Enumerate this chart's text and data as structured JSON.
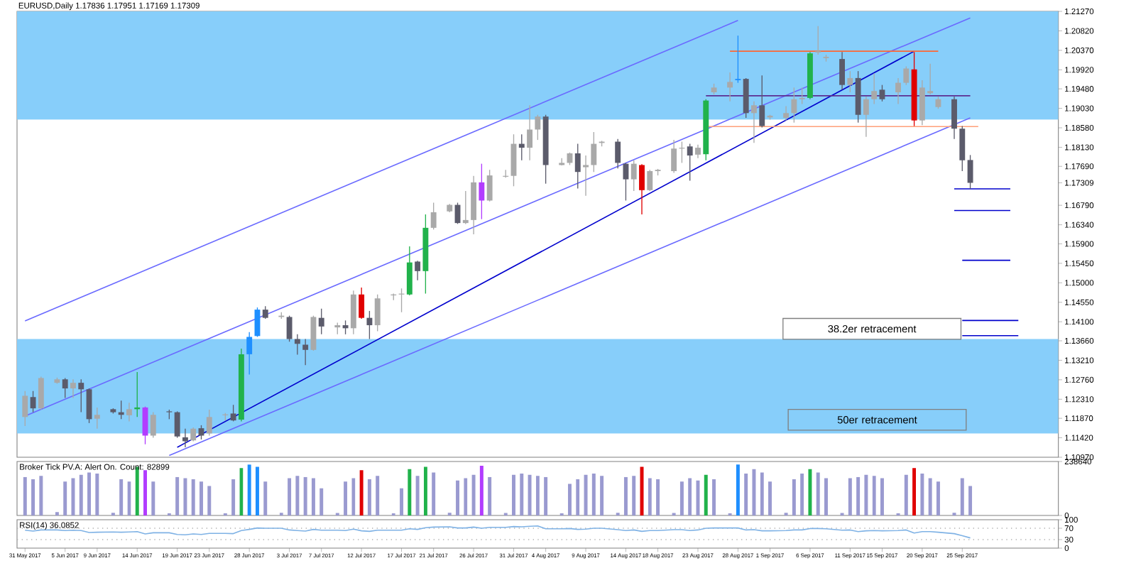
{
  "chart_data": [
    {
      "type": "candlestick",
      "title": "EURUSD,Daily 1.17836 1.17951 1.17169 1.17309",
      "x": [
        "2017-05-31",
        "2017-06-01",
        "2017-06-02",
        "2017-06-04",
        "2017-06-05",
        "2017-06-06",
        "2017-06-07",
        "2017-06-08",
        "2017-06-09",
        "2017-06-11",
        "2017-06-12",
        "2017-06-13",
        "2017-06-14",
        "2017-06-15",
        "2017-06-16",
        "2017-06-18",
        "2017-06-19",
        "2017-06-20",
        "2017-06-21",
        "2017-06-22",
        "2017-06-23",
        "2017-06-25",
        "2017-06-26",
        "2017-06-27",
        "2017-06-28",
        "2017-06-29",
        "2017-06-30",
        "2017-07-02",
        "2017-07-03",
        "2017-07-04",
        "2017-07-05",
        "2017-07-06",
        "2017-07-07",
        "2017-07-09",
        "2017-07-10",
        "2017-07-11",
        "2017-07-12",
        "2017-07-13",
        "2017-07-14",
        "2017-07-16",
        "2017-07-17",
        "2017-07-18",
        "2017-07-19",
        "2017-07-20",
        "2017-07-21",
        "2017-07-23",
        "2017-07-24",
        "2017-07-25",
        "2017-07-26",
        "2017-07-27",
        "2017-07-28",
        "2017-07-30",
        "2017-07-31",
        "2017-08-01",
        "2017-08-02",
        "2017-08-03",
        "2017-08-04",
        "2017-08-06",
        "2017-08-07",
        "2017-08-08",
        "2017-08-09",
        "2017-08-10",
        "2017-08-11",
        "2017-08-13",
        "2017-08-14",
        "2017-08-15",
        "2017-08-16",
        "2017-08-17",
        "2017-08-18",
        "2017-08-20",
        "2017-08-21",
        "2017-08-22",
        "2017-08-23",
        "2017-08-24",
        "2017-08-25",
        "2017-08-27",
        "2017-08-28",
        "2017-08-29",
        "2017-08-30",
        "2017-08-31",
        "2017-09-01",
        "2017-09-03",
        "2017-09-04",
        "2017-09-05",
        "2017-09-06",
        "2017-09-07",
        "2017-09-08",
        "2017-09-10",
        "2017-09-11",
        "2017-09-12",
        "2017-09-13",
        "2017-09-14",
        "2017-09-15",
        "2017-09-17",
        "2017-09-18",
        "2017-09-19",
        "2017-09-20",
        "2017-09-21",
        "2017-09-22",
        "2017-09-24",
        "2017-09-25",
        "2017-09-26"
      ],
      "ohlc": [
        [
          1.119,
          1.125,
          1.1169,
          1.1239
        ],
        [
          1.1236,
          1.125,
          1.1201,
          1.121
        ],
        [
          1.121,
          1.1283,
          1.1207,
          1.128
        ],
        [
          1.1269,
          1.1281,
          1.1267,
          1.1277
        ],
        [
          1.1277,
          1.128,
          1.1234,
          1.1256
        ],
        [
          1.1256,
          1.1277,
          1.1234,
          1.1269
        ],
        [
          1.1269,
          1.1277,
          1.1201,
          1.1254
        ],
        [
          1.1254,
          1.1256,
          1.1176,
          1.1185
        ],
        [
          1.1186,
          1.1212,
          1.1163,
          1.1195
        ],
        [
          1.1208,
          1.121,
          1.1198,
          1.1201
        ],
        [
          1.1201,
          1.1228,
          1.1185,
          1.1195
        ],
        [
          1.1194,
          1.1223,
          1.118,
          1.1208
        ],
        [
          1.1208,
          1.1294,
          1.119,
          1.1212
        ],
        [
          1.1212,
          1.1214,
          1.1127,
          1.1147
        ],
        [
          1.1147,
          1.1201,
          1.1142,
          1.1195
        ],
        [
          1.1203,
          1.1207,
          1.1185,
          1.1201
        ],
        [
          1.1201,
          1.1203,
          1.1142,
          1.1145
        ],
        [
          1.1143,
          1.1163,
          1.112,
          1.1134
        ],
        [
          1.1136,
          1.1166,
          1.1134,
          1.1163
        ],
        [
          1.1164,
          1.1171,
          1.1138,
          1.1147
        ],
        [
          1.1152,
          1.1207,
          1.1147,
          1.119
        ],
        [
          1.1194,
          1.1199,
          1.1182,
          1.1196
        ],
        [
          1.1198,
          1.1218,
          1.118,
          1.1182
        ],
        [
          1.1184,
          1.1348,
          1.118,
          1.1335
        ],
        [
          1.1335,
          1.1386,
          1.1288,
          1.1375
        ],
        [
          1.1377,
          1.1443,
          1.1375,
          1.1438
        ],
        [
          1.1438,
          1.1446,
          1.1417,
          1.1419
        ],
        [
          1.1421,
          1.1432,
          1.1417,
          1.1424
        ],
        [
          1.1421,
          1.1424,
          1.1364,
          1.137
        ],
        [
          1.137,
          1.1381,
          1.1334,
          1.1359
        ],
        [
          1.1357,
          1.137,
          1.131,
          1.1345
        ],
        [
          1.1345,
          1.1424,
          1.1343,
          1.1421
        ],
        [
          1.1419,
          1.144,
          1.1381,
          1.1399
        ],
        [
          1.1397,
          1.1408,
          1.1381,
          1.1402
        ],
        [
          1.1402,
          1.1413,
          1.1381,
          1.1395
        ],
        [
          1.1395,
          1.1482,
          1.1381,
          1.1473
        ],
        [
          1.1473,
          1.1489,
          1.1417,
          1.1419
        ],
        [
          1.1419,
          1.1435,
          1.137,
          1.1402
        ],
        [
          1.1402,
          1.1473,
          1.1388,
          1.1464
        ],
        [
          1.1471,
          1.1475,
          1.146,
          1.1473
        ],
        [
          1.1473,
          1.1487,
          1.1432,
          1.1475
        ],
        [
          1.1473,
          1.1584,
          1.1471,
          1.1547
        ],
        [
          1.1549,
          1.1551,
          1.1506,
          1.1527
        ],
        [
          1.1527,
          1.1658,
          1.1475,
          1.1627
        ],
        [
          1.1627,
          1.1685,
          1.1623,
          1.1663
        ],
        [
          1.1665,
          1.1682,
          1.1663,
          1.168
        ],
        [
          1.168,
          1.1685,
          1.1636,
          1.1638
        ],
        [
          1.1638,
          1.1712,
          1.1636,
          1.1645
        ],
        [
          1.1645,
          1.1747,
          1.1612,
          1.1732
        ],
        [
          1.1732,
          1.1775,
          1.1647,
          1.169
        ],
        [
          1.169,
          1.1761,
          1.1688,
          1.1748
        ],
        [
          1.1745,
          1.1761,
          1.1743,
          1.1747
        ],
        [
          1.1747,
          1.1843,
          1.1723,
          1.1821
        ],
        [
          1.1821,
          1.1843,
          1.1783,
          1.1812
        ],
        [
          1.1812,
          1.191,
          1.1783,
          1.1854
        ],
        [
          1.1854,
          1.1888,
          1.183,
          1.1884
        ],
        [
          1.1884,
          1.1888,
          1.1729,
          1.1772
        ],
        [
          1.1772,
          1.1788,
          1.1771,
          1.1777
        ],
        [
          1.1777,
          1.1801,
          1.1772,
          1.1799
        ],
        [
          1.1799,
          1.1821,
          1.1718,
          1.1756
        ],
        [
          1.1767,
          1.1794,
          1.1701,
          1.1772
        ],
        [
          1.1772,
          1.1848,
          1.1756,
          1.1821
        ],
        [
          1.1823,
          1.1828,
          1.1815,
          1.1826
        ],
        [
          1.1826,
          1.1832,
          1.1764,
          1.1777
        ],
        [
          1.1775,
          1.1777,
          1.169,
          1.1739
        ],
        [
          1.1739,
          1.1783,
          1.1712,
          1.1775
        ],
        [
          1.1772,
          1.1774,
          1.1658,
          1.1714
        ],
        [
          1.1714,
          1.1761,
          1.1712,
          1.1758
        ],
        [
          1.1758,
          1.1763,
          1.1748,
          1.1761
        ],
        [
          1.1758,
          1.183,
          1.1754,
          1.181
        ],
        [
          1.181,
          1.1826,
          1.1777,
          1.1812
        ],
        [
          1.1815,
          1.1821,
          1.1736,
          1.1794
        ],
        [
          1.1796,
          1.1819,
          1.1788,
          1.1812
        ],
        [
          1.1797,
          1.1924,
          1.1783,
          1.1921
        ],
        [
          1.194,
          1.196,
          1.1935,
          1.1951
        ],
        [
          1.1951,
          1.1986,
          1.1919,
          1.1964
        ],
        [
          1.1968,
          1.2071,
          1.1962,
          1.1971
        ],
        [
          1.1971,
          1.1973,
          1.1881,
          1.1892
        ],
        [
          1.1892,
          1.1919,
          1.1823,
          1.191
        ],
        [
          1.191,
          1.1979,
          1.1859,
          1.1862
        ],
        [
          1.1882,
          1.1888,
          1.1877,
          1.1886
        ],
        [
          1.1881,
          1.1908,
          1.1875,
          1.1892
        ],
        [
          1.1892,
          1.1951,
          1.187,
          1.1924
        ],
        [
          1.1924,
          1.1951,
          1.1913,
          1.1927
        ],
        [
          1.1927,
          1.2033,
          1.1924,
          1.203
        ],
        [
          1.2032,
          1.2093,
          1.2027,
          1.2035
        ],
        [
          1.2019,
          1.2027,
          1.2011,
          1.2022
        ],
        [
          1.2017,
          1.2033,
          1.1946,
          1.1957
        ],
        [
          1.1957,
          1.1989,
          1.194,
          1.1973
        ],
        [
          1.1973,
          1.1989,
          1.187,
          1.1888
        ],
        [
          1.1888,
          1.193,
          1.1837,
          1.1924
        ],
        [
          1.1924,
          1.1984,
          1.1913,
          1.1943
        ],
        [
          1.1946,
          1.1957,
          1.1919,
          1.1924
        ],
        [
          1.194,
          1.1973,
          1.1913,
          1.1962
        ],
        [
          1.1962,
          1.2,
          1.1957,
          1.1995
        ],
        [
          1.1993,
          1.2033,
          1.1862,
          1.1875
        ],
        [
          1.1875,
          1.1968,
          1.1864,
          1.1951
        ],
        [
          1.1938,
          1.2006,
          1.1935,
          1.1943
        ],
        [
          1.1906,
          1.193,
          1.1902,
          1.1924
        ],
        [
          1.1924,
          1.193,
          1.1832,
          1.1856
        ],
        [
          1.1856,
          1.1862,
          1.1758,
          1.1783
        ],
        [
          1.17836,
          1.17951,
          1.17169,
          1.17309
        ]
      ],
      "colors": [
        "#a9a9a9",
        "#5b5b6b",
        "#a9a9a9",
        "#a9a9a9",
        "#5b5b6b",
        "#a9a9a9",
        "#5b5b6b",
        "#5b5b6b",
        "#a9a9a9",
        "#5b5b6b",
        "#5b5b6b",
        "#a9a9a9",
        "#21b24b",
        "#b23cff",
        "#a9a9a9",
        "#5b5b6b",
        "#5b5b6b",
        "#5b5b6b",
        "#a9a9a9",
        "#5b5b6b",
        "#a9a9a9",
        "#a9a9a9",
        "#5b5b6b",
        "#21b24b",
        "#1e8fff",
        "#1e8fff",
        "#5b5b6b",
        "#a9a9a9",
        "#5b5b6b",
        "#5b5b6b",
        "#5b5b6b",
        "#a9a9a9",
        "#5b5b6b",
        "#a9a9a9",
        "#5b5b6b",
        "#a9a9a9",
        "#e00000",
        "#5b5b6b",
        "#a9a9a9",
        "#a9a9a9",
        "#a9a9a9",
        "#21b24b",
        "#5b5b6b",
        "#21b24b",
        "#a9a9a9",
        "#a9a9a9",
        "#5b5b6b",
        "#a9a9a9",
        "#a9a9a9",
        "#b23cff",
        "#a9a9a9",
        "#a9a9a9",
        "#a9a9a9",
        "#5b5b6b",
        "#a9a9a9",
        "#a9a9a9",
        "#5b5b6b",
        "#a9a9a9",
        "#a9a9a9",
        "#5b5b6b",
        "#a9a9a9",
        "#a9a9a9",
        "#a9a9a9",
        "#5b5b6b",
        "#5b5b6b",
        "#a9a9a9",
        "#e00000",
        "#a9a9a9",
        "#a9a9a9",
        "#a9a9a9",
        "#a9a9a9",
        "#5b5b6b",
        "#a9a9a9",
        "#21b24b",
        "#a9a9a9",
        "#a9a9a9",
        "#1e8fff",
        "#5b5b6b",
        "#a9a9a9",
        "#5b5b6b",
        "#a9a9a9",
        "#a9a9a9",
        "#a9a9a9",
        "#a9a9a9",
        "#21b24b",
        "#a9a9a9",
        "#a9a9a9",
        "#5b5b6b",
        "#a9a9a9",
        "#5b5b6b",
        "#a9a9a9",
        "#a9a9a9",
        "#5b5b6b",
        "#a9a9a9",
        "#a9a9a9",
        "#e00000",
        "#a9a9a9",
        "#a9a9a9",
        "#a9a9a9",
        "#5b5b6b",
        "#5b5b6b",
        "#5b5b6b"
      ],
      "series": [
        {
          "type": "line",
          "x": [
            "2017-06-19",
            "2017-09-19"
          ],
          "values": [
            1.112,
            1.2035
          ],
          "color": "#0000cd"
        },
        {
          "type": "line",
          "x": [
            "2017-05-31",
            "2017-08-28"
          ],
          "values": [
            1.1412,
            1.2106
          ],
          "color": "#6a6aff"
        },
        {
          "type": "line",
          "x": [
            "2017-05-31",
            "2017-09-26"
          ],
          "values": [
            1.1192,
            1.2112
          ],
          "color": "#6a6aff"
        },
        {
          "type": "line",
          "x": [
            "2017-06-18",
            "2017-09-26"
          ],
          "values": [
            1.1101,
            1.1881
          ],
          "color": "#6a6aff"
        },
        {
          "type": "line",
          "x": [
            "2017-08-27",
            "2017-09-22"
          ],
          "values": [
            1.2035,
            1.2035
          ],
          "color": "#ff6633"
        },
        {
          "type": "line",
          "x": [
            "2017-08-24",
            "2017-09-27"
          ],
          "values": [
            1.1861,
            1.1861
          ],
          "color": "#ffa07a"
        },
        {
          "type": "line",
          "x": [
            "2017-08-24",
            "2017-09-26"
          ],
          "values": [
            1.1932,
            1.1932
          ],
          "color": "#5c2d91"
        },
        {
          "type": "line",
          "x": [
            "2017-09-24",
            "2017-10-01"
          ],
          "values": [
            1.1717,
            1.1717
          ],
          "color": "#0000cc"
        },
        {
          "type": "line",
          "x": [
            "2017-09-24",
            "2017-10-01"
          ],
          "values": [
            1.1667,
            1.1667
          ],
          "color": "#0000cc"
        },
        {
          "type": "line",
          "x": [
            "2017-09-25",
            "2017-10-01"
          ],
          "values": [
            1.1552,
            1.1552
          ],
          "color": "#0000cc"
        },
        {
          "type": "line",
          "x": [
            "2017-09-25",
            "2017-10-02"
          ],
          "values": [
            1.1413,
            1.1413
          ],
          "color": "#0000cc"
        },
        {
          "type": "line",
          "x": [
            "2017-09-25",
            "2017-10-02"
          ],
          "values": [
            1.1378,
            1.1378
          ],
          "color": "#0000cc"
        }
      ],
      "bands": [
        {
          "axis": "y",
          "from": 1.1877,
          "to": 1.2127,
          "color": "#87cefa"
        },
        {
          "axis": "y",
          "from": 1.1152,
          "to": 1.137,
          "color": "#87cefa"
        }
      ],
      "annotations": [
        "38.2er retracement",
        "50er retracement"
      ],
      "xlim": [
        "2017-05-30",
        "2017-10-07"
      ],
      "ylim": [
        1.1097,
        1.2127
      ],
      "yticks": [
        {
          "value": 1.2127,
          "label": "1.21270"
        },
        {
          "value": 1.2082,
          "label": "1.20820"
        },
        {
          "value": 1.2037,
          "label": "1.20370"
        },
        {
          "value": 1.1992,
          "label": "1.19920"
        },
        {
          "value": 1.1948,
          "label": "1.19480"
        },
        {
          "value": 1.1903,
          "label": "1.19030"
        },
        {
          "value": 1.1858,
          "label": "1.18580"
        },
        {
          "value": 1.1813,
          "label": "1.18130"
        },
        {
          "value": 1.1769,
          "label": "1.17690"
        },
        {
          "value": 1.17309,
          "label": "1.17309"
        },
        {
          "value": 1.1679,
          "label": "1.16790"
        },
        {
          "value": 1.1634,
          "label": "1.16340"
        },
        {
          "value": 1.159,
          "label": "1.15900"
        },
        {
          "value": 1.1545,
          "label": "1.15450"
        },
        {
          "value": 1.15,
          "label": "1.15000"
        },
        {
          "value": 1.1455,
          "label": "1.14550"
        },
        {
          "value": 1.141,
          "label": "1.14100"
        },
        {
          "value": 1.1366,
          "label": "1.13660"
        },
        {
          "value": 1.1321,
          "label": "1.13210"
        },
        {
          "value": 1.1276,
          "label": "1.12760"
        },
        {
          "value": 1.1231,
          "label": "1.12310"
        },
        {
          "value": 1.1187,
          "label": "1.11870"
        },
        {
          "value": 1.1142,
          "label": "1.11420"
        },
        {
          "value": 1.1097,
          "label": "1.10970"
        }
      ],
      "tick_labels": "y"
    },
    {
      "type": "bar",
      "title": "Broker Tick PV.A:   Alert On.   Count: 82899",
      "x": [
        "2017-05-31",
        "2017-06-01",
        "2017-06-02",
        "2017-06-04",
        "2017-06-05",
        "2017-06-06",
        "2017-06-07",
        "2017-06-08",
        "2017-06-09",
        "2017-06-11",
        "2017-06-12",
        "2017-06-13",
        "2017-06-14",
        "2017-06-15",
        "2017-06-16",
        "2017-06-18",
        "2017-06-19",
        "2017-06-20",
        "2017-06-21",
        "2017-06-22",
        "2017-06-23",
        "2017-06-25",
        "2017-06-26",
        "2017-06-27",
        "2017-06-28",
        "2017-06-29",
        "2017-06-30",
        "2017-07-02",
        "2017-07-03",
        "2017-07-04",
        "2017-07-05",
        "2017-07-06",
        "2017-07-07",
        "2017-07-09",
        "2017-07-10",
        "2017-07-11",
        "2017-07-12",
        "2017-07-13",
        "2017-07-14",
        "2017-07-16",
        "2017-07-17",
        "2017-07-18",
        "2017-07-19",
        "2017-07-20",
        "2017-07-21",
        "2017-07-23",
        "2017-07-24",
        "2017-07-25",
        "2017-07-26",
        "2017-07-27",
        "2017-07-28",
        "2017-07-30",
        "2017-07-31",
        "2017-08-01",
        "2017-08-02",
        "2017-08-03",
        "2017-08-04",
        "2017-08-06",
        "2017-08-07",
        "2017-08-08",
        "2017-08-09",
        "2017-08-10",
        "2017-08-11",
        "2017-08-13",
        "2017-08-14",
        "2017-08-15",
        "2017-08-16",
        "2017-08-17",
        "2017-08-18",
        "2017-08-20",
        "2017-08-21",
        "2017-08-22",
        "2017-08-23",
        "2017-08-24",
        "2017-08-25",
        "2017-08-27",
        "2017-08-28",
        "2017-08-29",
        "2017-08-30",
        "2017-08-31",
        "2017-09-01",
        "2017-09-03",
        "2017-09-04",
        "2017-09-05",
        "2017-09-06",
        "2017-09-07",
        "2017-09-08",
        "2017-09-10",
        "2017-09-11",
        "2017-09-12",
        "2017-09-13",
        "2017-09-14",
        "2017-09-15",
        "2017-09-17",
        "2017-09-18",
        "2017-09-19",
        "2017-09-20",
        "2017-09-21",
        "2017-09-22",
        "2017-09-24",
        "2017-09-25",
        "2017-09-26"
      ],
      "values": [
        170000,
        160000,
        175000,
        15000,
        150000,
        165000,
        180000,
        190000,
        185000,
        12000,
        160000,
        150000,
        215000,
        200000,
        150000,
        10000,
        170000,
        165000,
        160000,
        150000,
        130000,
        10000,
        160000,
        210000,
        225000,
        215000,
        150000,
        12000,
        165000,
        175000,
        170000,
        165000,
        120000,
        11000,
        150000,
        165000,
        200000,
        160000,
        175000,
        10000,
        120000,
        205000,
        175000,
        215000,
        190000,
        12000,
        155000,
        165000,
        180000,
        220000,
        170000,
        11000,
        180000,
        185000,
        180000,
        175000,
        170000,
        10000,
        140000,
        160000,
        180000,
        185000,
        175000,
        12000,
        170000,
        175000,
        215000,
        165000,
        160000,
        11000,
        150000,
        165000,
        155000,
        180000,
        160000,
        10000,
        225000,
        185000,
        205000,
        190000,
        150000,
        12000,
        160000,
        185000,
        205000,
        190000,
        165000,
        11000,
        165000,
        170000,
        180000,
        175000,
        165000,
        10000,
        180000,
        210000,
        185000,
        165000,
        150000,
        12000,
        165000,
        130000
      ],
      "colors": [
        "#9a9ad0",
        "#9a9ad0",
        "#9a9ad0",
        "#9a9ad0",
        "#9a9ad0",
        "#9a9ad0",
        "#9a9ad0",
        "#9a9ad0",
        "#9a9ad0",
        "#9a9ad0",
        "#9a9ad0",
        "#9a9ad0",
        "#21b24b",
        "#b23cff",
        "#9a9ad0",
        "#9a9ad0",
        "#9a9ad0",
        "#9a9ad0",
        "#9a9ad0",
        "#9a9ad0",
        "#9a9ad0",
        "#9a9ad0",
        "#9a9ad0",
        "#21b24b",
        "#1e8fff",
        "#1e8fff",
        "#9a9ad0",
        "#9a9ad0",
        "#9a9ad0",
        "#9a9ad0",
        "#9a9ad0",
        "#9a9ad0",
        "#9a9ad0",
        "#9a9ad0",
        "#9a9ad0",
        "#9a9ad0",
        "#e00000",
        "#9a9ad0",
        "#9a9ad0",
        "#9a9ad0",
        "#9a9ad0",
        "#21b24b",
        "#9a9ad0",
        "#21b24b",
        "#9a9ad0",
        "#9a9ad0",
        "#9a9ad0",
        "#9a9ad0",
        "#9a9ad0",
        "#b23cff",
        "#9a9ad0",
        "#9a9ad0",
        "#9a9ad0",
        "#9a9ad0",
        "#9a9ad0",
        "#9a9ad0",
        "#9a9ad0",
        "#9a9ad0",
        "#9a9ad0",
        "#9a9ad0",
        "#9a9ad0",
        "#9a9ad0",
        "#9a9ad0",
        "#9a9ad0",
        "#9a9ad0",
        "#9a9ad0",
        "#e00000",
        "#9a9ad0",
        "#9a9ad0",
        "#9a9ad0",
        "#9a9ad0",
        "#9a9ad0",
        "#9a9ad0",
        "#21b24b",
        "#9a9ad0",
        "#9a9ad0",
        "#1e8fff",
        "#9a9ad0",
        "#9a9ad0",
        "#9a9ad0",
        "#9a9ad0",
        "#9a9ad0",
        "#9a9ad0",
        "#9a9ad0",
        "#21b24b",
        "#9a9ad0",
        "#9a9ad0",
        "#9a9ad0",
        "#9a9ad0",
        "#9a9ad0",
        "#9a9ad0",
        "#9a9ad0",
        "#9a9ad0",
        "#9a9ad0",
        "#9a9ad0",
        "#e00000",
        "#9a9ad0",
        "#9a9ad0",
        "#9a9ad0",
        "#9a9ad0",
        "#9a9ad0",
        "#9a9ad0"
      ],
      "xlim": [
        "2017-05-30",
        "2017-10-07"
      ],
      "ylim": [
        0,
        238640
      ],
      "yticks": [
        0,
        238640
      ],
      "tick_labels": "y"
    },
    {
      "type": "line",
      "title": "RSI(14) 36.0852",
      "x": [
        "2017-05-31",
        "2017-06-01",
        "2017-06-02",
        "2017-06-04",
        "2017-06-05",
        "2017-06-06",
        "2017-06-07",
        "2017-06-08",
        "2017-06-09",
        "2017-06-11",
        "2017-06-12",
        "2017-06-13",
        "2017-06-14",
        "2017-06-15",
        "2017-06-16",
        "2017-06-18",
        "2017-06-19",
        "2017-06-20",
        "2017-06-21",
        "2017-06-22",
        "2017-06-23",
        "2017-06-25",
        "2017-06-26",
        "2017-06-27",
        "2017-06-28",
        "2017-06-29",
        "2017-06-30",
        "2017-07-02",
        "2017-07-03",
        "2017-07-04",
        "2017-07-05",
        "2017-07-06",
        "2017-07-07",
        "2017-07-09",
        "2017-07-10",
        "2017-07-11",
        "2017-07-12",
        "2017-07-13",
        "2017-07-14",
        "2017-07-16",
        "2017-07-17",
        "2017-07-18",
        "2017-07-19",
        "2017-07-20",
        "2017-07-21",
        "2017-07-23",
        "2017-07-24",
        "2017-07-25",
        "2017-07-26",
        "2017-07-27",
        "2017-07-28",
        "2017-07-30",
        "2017-07-31",
        "2017-08-01",
        "2017-08-02",
        "2017-08-03",
        "2017-08-04",
        "2017-08-06",
        "2017-08-07",
        "2017-08-08",
        "2017-08-09",
        "2017-08-10",
        "2017-08-11",
        "2017-08-13",
        "2017-08-14",
        "2017-08-15",
        "2017-08-16",
        "2017-08-17",
        "2017-08-18",
        "2017-08-20",
        "2017-08-21",
        "2017-08-22",
        "2017-08-23",
        "2017-08-24",
        "2017-08-25",
        "2017-08-27",
        "2017-08-28",
        "2017-08-29",
        "2017-08-30",
        "2017-08-31",
        "2017-09-01",
        "2017-09-03",
        "2017-09-04",
        "2017-09-05",
        "2017-09-06",
        "2017-09-07",
        "2017-09-08",
        "2017-09-10",
        "2017-09-11",
        "2017-09-12",
        "2017-09-13",
        "2017-09-14",
        "2017-09-15",
        "2017-09-17",
        "2017-09-18",
        "2017-09-19",
        "2017-09-20",
        "2017-09-21",
        "2017-09-22",
        "2017-09-24",
        "2017-09-25",
        "2017-09-26"
      ],
      "values": [
        63,
        60,
        64,
        64,
        62,
        63,
        62,
        55,
        56,
        57,
        56,
        57,
        58,
        50,
        54,
        54,
        48,
        47,
        50,
        48,
        52,
        52,
        51,
        62,
        66,
        71,
        70,
        70,
        64,
        62,
        60,
        66,
        63,
        63,
        62,
        67,
        61,
        59,
        63,
        63,
        63,
        68,
        66,
        72,
        74,
        75,
        71,
        71,
        74,
        70,
        73,
        73,
        76,
        75,
        77,
        78,
        68,
        68,
        69,
        66,
        67,
        70,
        70,
        65,
        62,
        64,
        59,
        62,
        62,
        65,
        65,
        62,
        64,
        70,
        71,
        71,
        71,
        64,
        65,
        61,
        61,
        62,
        64,
        64,
        69,
        69,
        68,
        63,
        64,
        58,
        61,
        62,
        61,
        62,
        64,
        53,
        58,
        58,
        56,
        51,
        44,
        36
      ],
      "color": "#7fb2e5",
      "ref_lines": [
        {
          "axis": "y",
          "value": 70,
          "color": "#b0b0b0",
          "line_style": "dotted"
        },
        {
          "axis": "y",
          "value": 30,
          "color": "#b0b0b0",
          "line_style": "dotted"
        }
      ],
      "xlim": [
        "2017-05-30",
        "2017-10-07"
      ],
      "ylim": [
        0,
        100
      ],
      "yticks": [
        0,
        30,
        70,
        100
      ],
      "xticks": [
        {
          "value": "2017-05-31",
          "label": "31 May 2017"
        },
        {
          "value": "2017-06-05",
          "label": "5 Jun 2017"
        },
        {
          "value": "2017-06-09",
          "label": "9 Jun 2017"
        },
        {
          "value": "2017-06-14",
          "label": "14 Jun 2017"
        },
        {
          "value": "2017-06-19",
          "label": "19 Jun 2017"
        },
        {
          "value": "2017-06-23",
          "label": "23 Jun 2017"
        },
        {
          "value": "2017-06-28",
          "label": "28 Jun 2017"
        },
        {
          "value": "2017-07-03",
          "label": "3 Jul 2017"
        },
        {
          "value": "2017-07-07",
          "label": "7 Jul 2017"
        },
        {
          "value": "2017-07-12",
          "label": "12 Jul 2017"
        },
        {
          "value": "2017-07-17",
          "label": "17 Jul 2017"
        },
        {
          "value": "2017-07-21",
          "label": "21 Jul 2017"
        },
        {
          "value": "2017-07-26",
          "label": "26 Jul 2017"
        },
        {
          "value": "2017-07-31",
          "label": "31 Jul 2017"
        },
        {
          "value": "2017-08-04",
          "label": "4 Aug 2017"
        },
        {
          "value": "2017-08-09",
          "label": "9 Aug 2017"
        },
        {
          "value": "2017-08-14",
          "label": "14 Aug 2017"
        },
        {
          "value": "2017-08-18",
          "label": "18 Aug 2017"
        },
        {
          "value": "2017-08-23",
          "label": "23 Aug 2017"
        },
        {
          "value": "2017-08-28",
          "label": "28 Aug 2017"
        },
        {
          "value": "2017-09-01",
          "label": "1 Sep 2017"
        },
        {
          "value": "2017-09-06",
          "label": "6 Sep 2017"
        },
        {
          "value": "2017-09-11",
          "label": "11 Sep 2017"
        },
        {
          "value": "2017-09-15",
          "label": "15 Sep 2017"
        },
        {
          "value": "2017-09-20",
          "label": "20 Sep 2017"
        },
        {
          "value": "2017-09-25",
          "label": "25 Sep 2017"
        }
      ]
    }
  ]
}
